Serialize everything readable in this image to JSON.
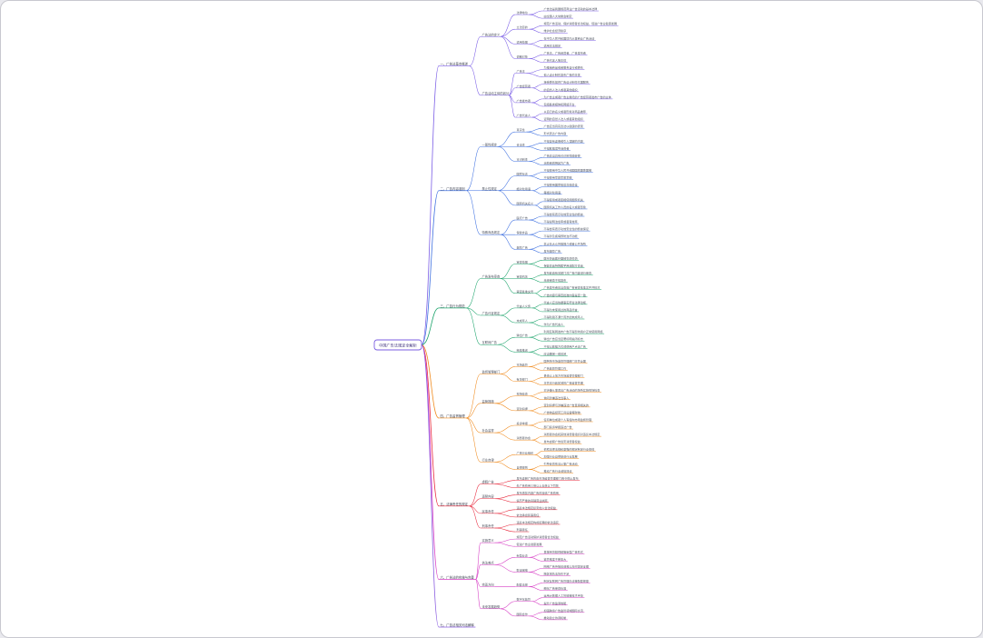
{
  "root": {
    "label": "中国广告法规定全解析"
  },
  "colors": {
    "root": "#7b5ee0",
    "canvas": "#ffffff",
    "frame": "#c8c8cf",
    "text": "#555a66"
  },
  "branches": [
    {
      "label": "一、广告法基本概述",
      "color": "#7a5de6",
      "children": [
        {
          "label": "广告法的定义",
          "children": [
            {
              "label": "法律地位",
              "children": [
                "广告法是我国规范商业广告活动的基本法律",
                "由全国人大常委会制定"
              ]
            },
            {
              "label": "立法目的",
              "children": [
                "规范广告活动，保护消费者合法权益，促进广告业健康发展",
                "维护社会经济秩序"
              ]
            },
            {
              "label": "适用范围",
              "children": [
                "在中华人民共和国境内从事商业广告活动",
                "适用本法规定"
              ]
            },
            {
              "label": "调整对象",
              "children": [
                "广告主、广告经营者、广告发布者",
                "广告代言人等主体"
              ]
            }
          ]
        },
        {
          "label": "广告活动主体的划分",
          "children": [
            {
              "label": "广告主",
              "children": [
                "为推销商品或者服务自行或委托",
                "他人设计制作发布广告的主体"
              ]
            },
            {
              "label": "广告经营者",
              "children": [
                "接受委托提供广告设计制作代理服务",
                "的自然人法人或者其他组织"
              ]
            },
            {
              "label": "广告发布者",
              "children": [
                "为广告主或者广告主委托的广告经营者发布广告的主体",
                "包括各类媒体和网络平台"
              ]
            },
            {
              "label": "广告代言人",
              "children": [
                "以自己的名义或者形象对商品推荐",
                "证明的自然人法人或者其他组织"
              ]
            }
          ]
        }
      ]
    },
    {
      "label": "二、广告内容准则",
      "color": "#3d6fe0",
      "children": [
        {
          "label": "一般性规定",
          "children": [
            {
              "label": "真实性",
              "children": [
                "广告应当真实合法以健康的表现",
                "形式表达广告内容"
              ]
            },
            {
              "label": "合法性",
              "children": [
                "不得含有虚假或引人误解的内容",
                "不得欺骗误导消费者"
              ]
            },
            {
              "label": "可识别性",
              "children": [
                "广告应当具有可识别性能够使",
                "消费者辨明其为广告"
              ]
            }
          ]
        },
        {
          "label": "禁止性规定",
          "children": [
            {
              "label": "国家标志",
              "children": [
                "不得使用中华人民共和国国旗国歌国徽",
                "不得使用军旗军歌军徽"
              ]
            },
            {
              "label": "绝对化用语",
              "children": [
                "不得使用国家级最高级最佳",
                "等绝对化用语"
              ]
            },
            {
              "label": "国家机关名义",
              "children": [
                "不得使用或者变相使用国家机关",
                "国家机关工作人员的名义或者形象"
              ]
            }
          ]
        },
        {
          "label": "特殊商品规定",
          "children": [
            {
              "label": "医疗广告",
              "children": [
                "不得含有表示功效安全性的断言",
                "不得说明治愈率或者有效率"
              ]
            },
            {
              "label": "保健食品",
              "children": [
                "不得含有表示功效安全性的断言保证",
                "不得涉及疾病预防治疗功能"
              ]
            },
            {
              "label": "烟草广告",
              "children": [
                "禁止在大众传播媒介或者公共场所",
                "发布烟草广告"
              ]
            }
          ]
        }
      ]
    },
    {
      "label": "三、广告行为规范",
      "color": "#1aa36a",
      "children": [
        {
          "label": "广告发布审查",
          "children": [
            {
              "label": "审查范围",
              "children": [
                "医疗药品医疗器械农药兽药",
                "保健食品特殊医学用途配方食品"
              ]
            },
            {
              "label": "审查机关",
              "children": [
                "发布前由有关部门对广告内容进行审查",
                "未经审查不得发布"
              ]
            },
            {
              "label": "审查批准文号",
              "children": [
                "广告发布者应当查验广告审查批准文件并核对",
                "广告内容与审查批准内容是否一致"
              ]
            }
          ]
        },
        {
          "label": "广告代言规定",
          "children": [
            {
              "label": "代言人义务",
              "children": [
                "代言人应当依据事实符合法律法规",
                "不得为未使用过的商品代言"
              ]
            },
            {
              "label": "未成年人",
              "children": [
                "不得利用不满十周岁的未成年人",
                "作为广告代言人"
              ]
            }
          ]
        },
        {
          "label": "互联网广告",
          "children": [
            {
              "label": "弹出广告",
              "children": [
                "利用互联网发布广告不得影响用户正常使用网络",
                "弹出广告应当显著标明关闭标志"
              ]
            },
            {
              "label": "精准推送",
              "children": [
                "不得以欺骗方式诱使用户点击广告",
                "应当确保一键关闭"
              ]
            }
          ]
        }
      ]
    },
    {
      "label": "四、广告监督管理",
      "color": "#f08a1c",
      "children": [
        {
          "label": "监督管理部门",
          "children": [
            {
              "label": "市场监管",
              "children": [
                "国务院市场监督管理部门主管全国",
                "广告监督管理工作"
              ]
            },
            {
              "label": "有关部门",
              "children": [
                "县级以上地方市场监督管理部门",
                "主管本行政区域的广告监督管理"
              ]
            }
          ]
        },
        {
          "label": "监管措施",
          "children": [
            {
              "label": "现场检查",
              "children": [
                "对涉嫌从事违法广告活动的场所实施现场检查",
                "询问涉嫌违法当事人"
              ]
            },
            {
              "label": "查封扣押",
              "children": [
                "查封扣押与涉嫌违法广告直接相关的",
                "广告物品经营工具设备等财物"
              ]
            }
          ]
        },
        {
          "label": "社会监督",
          "children": [
            {
              "label": "投诉举报",
              "children": [
                "任何单位或者个人有权向市场监督管理",
                "部门投诉举报违法广告"
              ]
            },
            {
              "label": "消费者协会",
              "children": [
                "消费者协会和其他消费者组织对违反本法规定",
                "发布虚假广告侵害消费者权益"
              ]
            }
          ]
        },
        {
          "label": "行业自律",
          "children": [
            {
              "label": "广告行业组织",
              "children": [
                "依照法律法规和章程的规定制定行业规范",
                "加强行业自律促进行业发展"
              ]
            },
            {
              "label": "自律规则",
              "children": [
                "引导会员依法从事广告活动",
                "推动广告行业诚信建设"
              ]
            }
          ]
        }
      ]
    },
    {
      "label": "五、法律责任的规定",
      "color": "#e8283c",
      "children": [
        {
          "label": "虚假广告",
          "children": [
            "发布虚假广告的由市场监督管理部门责令停止发布",
            "处广告费用三倍以上五倍以下罚款"
          ]
        },
        {
          "label": "违禁内容",
          "children": [
            "发布违禁内容广告的没收广告费用",
            "情节严重的吊销营业执照"
          ]
        },
        {
          "label": "民事责任",
          "children": [
            "违反本法规定损害他人合法权益",
            "依法承担民事责任"
          ]
        },
        {
          "label": "刑事责任",
          "children": [
            "违反本法规定构成犯罪的依法追究",
            "刑事责任"
          ]
        }
      ]
    },
    {
      "label": "六、广告法的实施与完善",
      "color": "#d63cc4",
      "children": [
        {
          "label": "实施意义",
          "children": [
            "规范广告活动保护消费者合法权益",
            "促进广告业健康发展"
          ]
        },
        {
          "label": "执法难点",
          "children": [
            {
              "label": "新型业态",
              "children": [
                "直播带货短视频等新型广告形式",
                "监管难度不断加大"
              ]
            },
            {
              "label": "取证困难",
              "children": [
                "网络广告传播迅速难以及时固定证据",
                "跨区域执法协作不足"
              ]
            }
          ]
        },
        {
          "label": "完善方向",
          "children": [
            {
              "label": "配套法规",
              "children": [
                "制定互联网广告管理办法等配套规章",
                "细化广告审查标准"
              ]
            }
          ]
        },
        {
          "label": "未来发展趋势",
          "children": [
            {
              "label": "数字化监管",
              "children": [
                "运用大数据人工智能等技术手段",
                "提升广告监测效能"
              ]
            },
            {
              "label": "国际合作",
              "children": [
                "加强跨境广告监管领域国际交流",
                "推动建立协调机制"
              ]
            }
          ]
        }
      ]
    },
    {
      "label": "七、广告法相关司法解释",
      "color": "#8a5de0",
      "children": []
    }
  ]
}
